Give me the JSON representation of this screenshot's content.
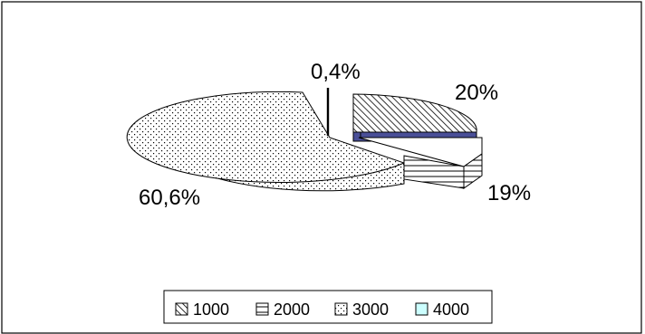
{
  "chart_data": {
    "type": "pie",
    "style": "3d-exploded",
    "categories": [
      "1000",
      "2000",
      "3000",
      "4000"
    ],
    "values": [
      20,
      19,
      60.6,
      0.4
    ],
    "data_labels": [
      "20%",
      "19%",
      "60,6%",
      "0,4%"
    ],
    "patterns": [
      "diagonal-hatch",
      "horizontal-lines",
      "dots",
      "solid-light-cyan"
    ],
    "legend": {
      "placement": "bottom",
      "entries": [
        "1000",
        "2000",
        "3000",
        "4000"
      ]
    },
    "title": "",
    "colors": {
      "stroke": "#000000",
      "blue_face": "#4a4f98",
      "cyan_swatch": "#ccffff",
      "background": "#ffffff"
    }
  }
}
